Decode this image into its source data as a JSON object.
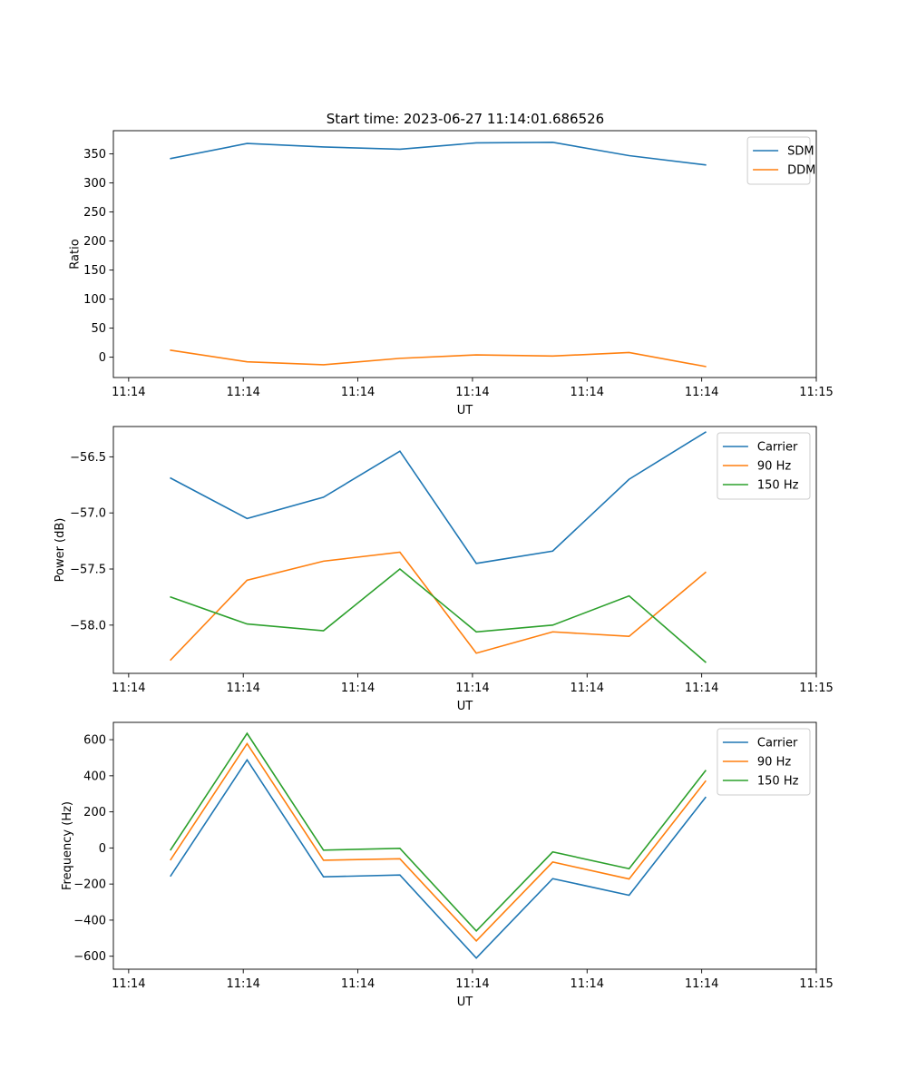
{
  "figure": {
    "title": "Start time: 2023-06-27 11:14:01.686526"
  },
  "chart_data": [
    {
      "type": "line",
      "title": "Start time: 2023-06-27 11:14:01.686526",
      "xlabel": "UT",
      "ylabel": "Ratio",
      "x": [
        0,
        1,
        2,
        3,
        4,
        5,
        6,
        7
      ],
      "xlim": [
        -0.75,
        8.45
      ],
      "x_ticks": [
        -0.55,
        0.95,
        2.45,
        3.95,
        5.45,
        6.95,
        8.45
      ],
      "x_tick_labels": [
        "11:14",
        "11:14",
        "11:14",
        "11:14",
        "11:14",
        "11:14",
        "11:15"
      ],
      "ylim": [
        -35,
        390
      ],
      "y_ticks": [
        0,
        50,
        100,
        150,
        200,
        250,
        300,
        350
      ],
      "y_tick_labels": [
        "0",
        "50",
        "100",
        "150",
        "200",
        "250",
        "300",
        "350"
      ],
      "legend_position": "top-right",
      "series": [
        {
          "name": "SDM",
          "color": "#1f77b4",
          "values": [
            342,
            368,
            362,
            358,
            369,
            370,
            347,
            331
          ]
        },
        {
          "name": "DDM",
          "color": "#ff7f0e",
          "values": [
            12,
            -8,
            -13,
            -2,
            4,
            2,
            8,
            -16
          ]
        }
      ]
    },
    {
      "type": "line",
      "xlabel": "UT",
      "ylabel": "Power (dB)",
      "x": [
        0,
        1,
        2,
        3,
        4,
        5,
        6,
        7
      ],
      "xlim": [
        -0.75,
        8.45
      ],
      "x_ticks": [
        -0.55,
        0.95,
        2.45,
        3.95,
        5.45,
        6.95,
        8.45
      ],
      "x_tick_labels": [
        "11:14",
        "11:14",
        "11:14",
        "11:14",
        "11:14",
        "11:14",
        "11:15"
      ],
      "ylim": [
        -58.43,
        -56.23
      ],
      "y_ticks": [
        -58.0,
        -57.5,
        -57.0,
        -56.5
      ],
      "y_tick_labels": [
        "−58.0",
        "−57.5",
        "−57.0",
        "−56.5"
      ],
      "legend_position": "top-right",
      "series": [
        {
          "name": "Carrier",
          "color": "#1f77b4",
          "values": [
            -56.69,
            -57.05,
            -56.86,
            -56.45,
            -57.45,
            -57.34,
            -56.7,
            -56.28
          ]
        },
        {
          "name": "90 Hz",
          "color": "#ff7f0e",
          "values": [
            -58.31,
            -57.6,
            -57.43,
            -57.35,
            -58.25,
            -58.06,
            -58.1,
            -57.53
          ]
        },
        {
          "name": "150 Hz",
          "color": "#2ca02c",
          "values": [
            -57.75,
            -57.99,
            -58.05,
            -57.5,
            -58.06,
            -58.0,
            -57.74,
            -58.33
          ]
        }
      ]
    },
    {
      "type": "line",
      "xlabel": "UT",
      "ylabel": "Frequency (Hz)",
      "x": [
        0,
        1,
        2,
        3,
        4,
        5,
        6,
        7
      ],
      "xlim": [
        -0.75,
        8.45
      ],
      "x_ticks": [
        -0.55,
        0.95,
        2.45,
        3.95,
        5.45,
        6.95,
        8.45
      ],
      "x_tick_labels": [
        "11:14",
        "11:14",
        "11:14",
        "11:14",
        "11:14",
        "11:14",
        "11:15"
      ],
      "ylim": [
        -672,
        696
      ],
      "y_ticks": [
        -600,
        -400,
        -200,
        0,
        200,
        400,
        600
      ],
      "y_tick_labels": [
        "−600",
        "−400",
        "−200",
        "0",
        "200",
        "400",
        "600"
      ],
      "legend_position": "top-right",
      "series": [
        {
          "name": "Carrier",
          "color": "#1f77b4",
          "values": [
            -155,
            488,
            -160,
            -150,
            -610,
            -170,
            -262,
            280
          ]
        },
        {
          "name": "90 Hz",
          "color": "#ff7f0e",
          "values": [
            -65,
            578,
            -68,
            -60,
            -515,
            -78,
            -172,
            370
          ]
        },
        {
          "name": "150 Hz",
          "color": "#2ca02c",
          "values": [
            -10,
            635,
            -12,
            -2,
            -460,
            -22,
            -115,
            428
          ]
        }
      ]
    }
  ]
}
